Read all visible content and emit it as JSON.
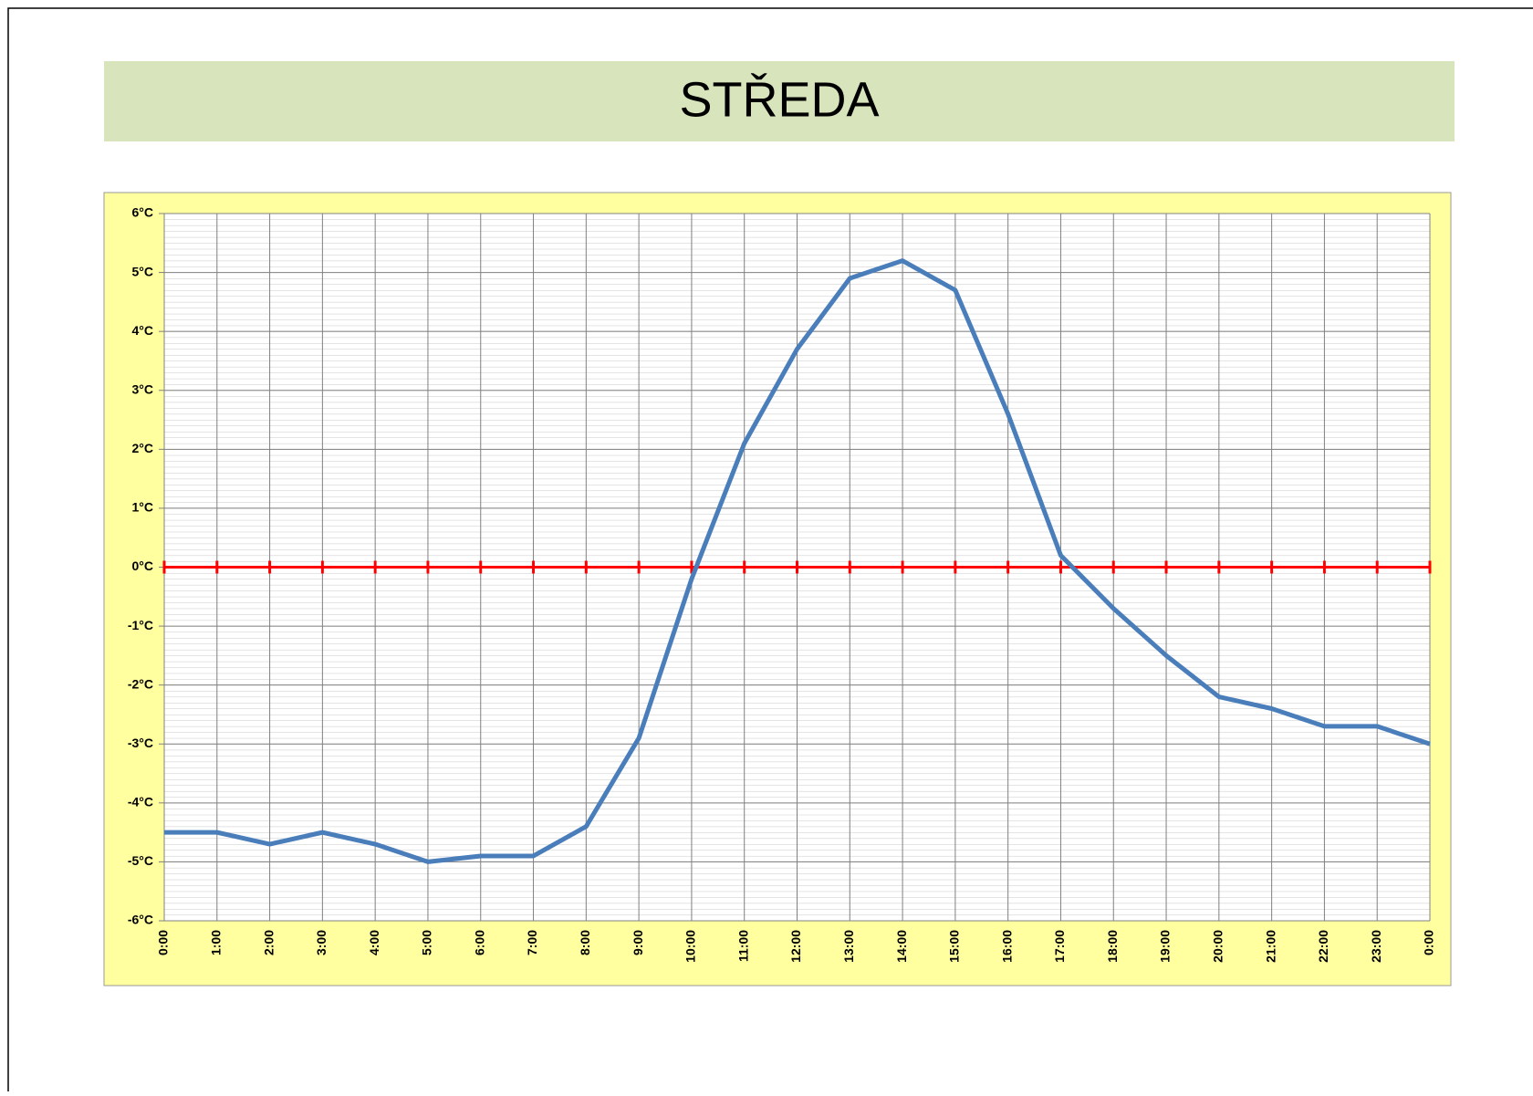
{
  "chart_data": {
    "type": "line",
    "title": "STŘEDA",
    "categories": [
      "0:00",
      "1:00",
      "2:00",
      "3:00",
      "4:00",
      "5:00",
      "6:00",
      "7:00",
      "8:00",
      "9:00",
      "10:00",
      "11:00",
      "12:00",
      "13:00",
      "14:00",
      "15:00",
      "16:00",
      "17:00",
      "18:00",
      "19:00",
      "20:00",
      "21:00",
      "22:00",
      "23:00",
      "0:00"
    ],
    "series": [
      {
        "color": "#4a7ebb",
        "values": [
          -4.5,
          -4.5,
          -4.7,
          -4.5,
          -4.7,
          -5.0,
          -4.9,
          -4.9,
          -4.4,
          -2.9,
          -0.2,
          2.1,
          3.7,
          4.9,
          5.2,
          4.7,
          2.6,
          0.2,
          -0.7,
          -1.5,
          -2.2,
          -2.4,
          -2.7,
          -2.7,
          -3.0
        ]
      }
    ],
    "ylim": [
      -6,
      6
    ],
    "yticks": [
      {
        "value": -6,
        "label": "-6°C"
      },
      {
        "value": -5,
        "label": "-5°C"
      },
      {
        "value": -4,
        "label": "-4°C"
      },
      {
        "value": -3,
        "label": "-3°C"
      },
      {
        "value": -2,
        "label": "-2°C"
      },
      {
        "value": -1,
        "label": "-1°C"
      },
      {
        "value": 0,
        "label": "0°C"
      },
      {
        "value": 1,
        "label": "1°C"
      },
      {
        "value": 2,
        "label": "2°C"
      },
      {
        "value": 3,
        "label": "3°C"
      },
      {
        "value": 4,
        "label": "4°C"
      },
      {
        "value": 5,
        "label": "5°C"
      },
      {
        "value": 6,
        "label": "6°C"
      }
    ],
    "grid": true,
    "zero_line_color": "#ff0000"
  }
}
